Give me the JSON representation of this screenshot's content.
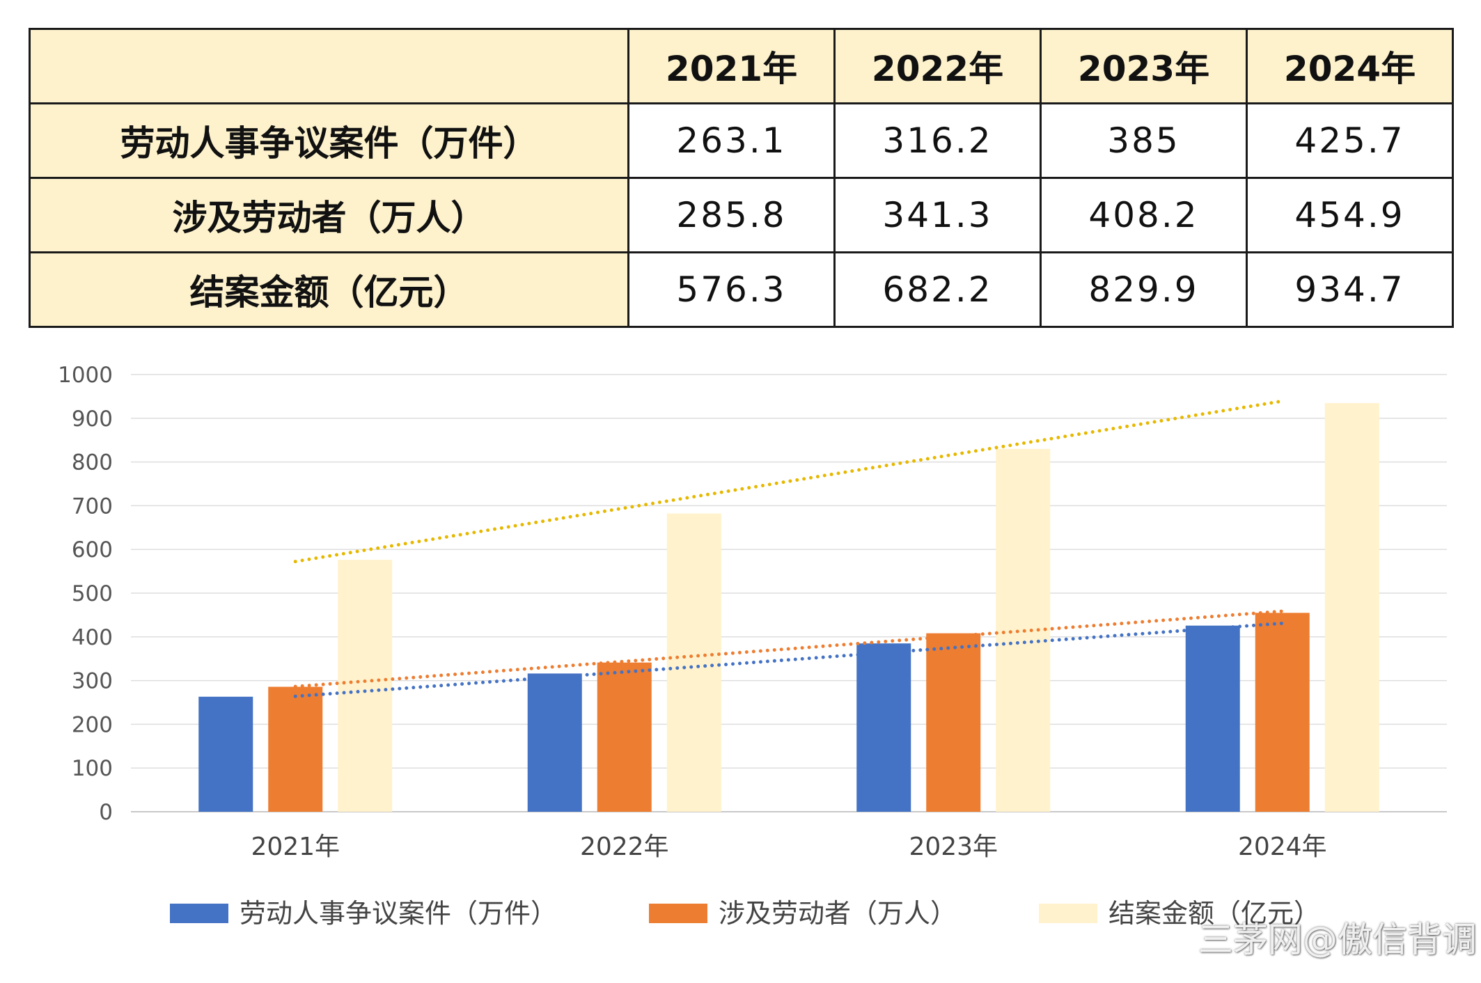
{
  "table": {
    "headers": [
      "",
      "2021年",
      "2022年",
      "2023年",
      "2024年"
    ],
    "rows": [
      {
        "label": "劳动人事争议案件（万件）",
        "values": [
          "263.1",
          "316.2",
          "385",
          "425.7"
        ]
      },
      {
        "label": "涉及劳动者（万人）",
        "values": [
          "285.8",
          "341.3",
          "408.2",
          "454.9"
        ]
      },
      {
        "label": "结案金额（亿元）",
        "values": [
          "576.3",
          "682.2",
          "829.9",
          "934.7"
        ]
      }
    ]
  },
  "chart_data": {
    "type": "bar",
    "categories": [
      "2021年",
      "2022年",
      "2023年",
      "2024年"
    ],
    "series": [
      {
        "name": "劳动人事争议案件（万件）",
        "values": [
          263.1,
          316.2,
          385,
          425.7
        ],
        "color": "#4472c4",
        "trendline_color": "#4472c4"
      },
      {
        "name": "涉及劳动者（万人）",
        "values": [
          285.8,
          341.3,
          408.2,
          454.9
        ],
        "color": "#ed7d31",
        "trendline_color": "#ed7d31"
      },
      {
        "name": "结案金额（亿元）",
        "values": [
          576.3,
          682.2,
          829.9,
          934.7
        ],
        "color": "#fff2cc",
        "trendline_color": "#e6b800"
      }
    ],
    "yticks": [
      "0",
      "100",
      "200",
      "300",
      "400",
      "500",
      "600",
      "700",
      "800",
      "900",
      "1000"
    ],
    "ylim": [
      0,
      1000
    ],
    "grid": true,
    "trendlines": "linear, dotted",
    "legend_position": "bottom"
  },
  "watermark": "三茅网@傲信背调"
}
